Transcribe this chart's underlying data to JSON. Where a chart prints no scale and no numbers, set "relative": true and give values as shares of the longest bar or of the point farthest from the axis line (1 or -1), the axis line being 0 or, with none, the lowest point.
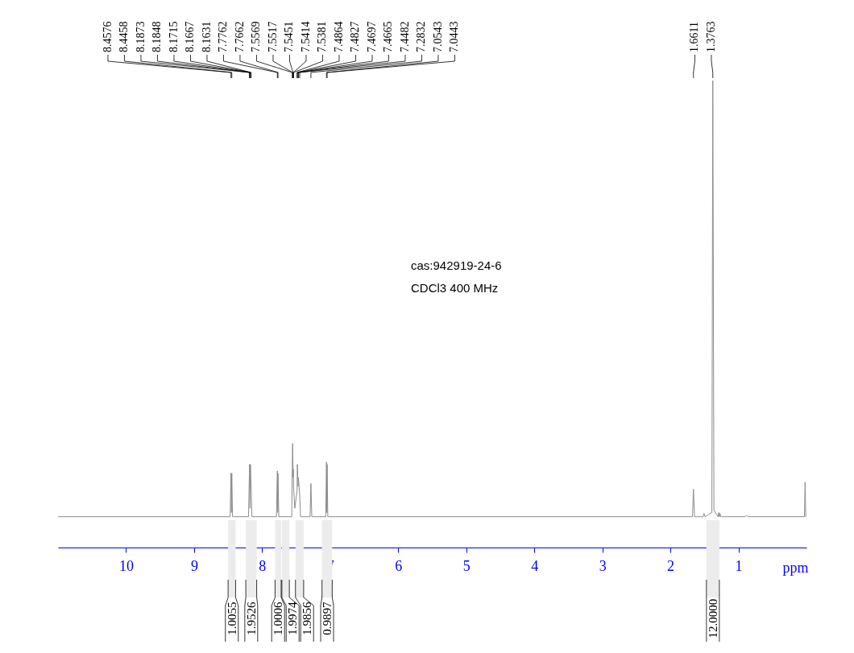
{
  "chart_data": {
    "type": "line",
    "relative": true,
    "xlabel": "ppm",
    "xlim": [
      11,
      0
    ],
    "xticks": [
      1,
      2,
      3,
      4,
      5,
      6,
      7,
      8,
      9,
      10
    ],
    "series": [
      {
        "color": "#8c8c8c",
        "x": [
          11,
          8.47,
          8.4576,
          8.452,
          8.4458,
          8.435,
          8.2,
          8.1873,
          8.1848,
          8.178,
          8.1715,
          8.1667,
          8.1631,
          8.15,
          7.79,
          7.7762,
          7.771,
          7.7662,
          7.755,
          7.565,
          7.5569,
          7.5517,
          7.5451,
          7.5414,
          7.5381,
          7.52,
          7.4864,
          7.4827,
          7.4697,
          7.4665,
          7.4482,
          7.435,
          7.295,
          7.2832,
          7.27,
          7.065,
          7.0543,
          7.049,
          7.0443,
          7.035,
          1.675,
          1.6611,
          1.645,
          1.52,
          1.505,
          1.49,
          1.39,
          1.3763,
          1.36,
          1.3,
          1.29,
          1.28,
          1.27,
          1.26,
          1.25,
          0.9,
          0.88,
          0.86,
          0.03,
          0.02,
          0.01,
          0
        ],
        "values": [
          0.066,
          0.066,
          0.159,
          0.075,
          0.159,
          0.066,
          0.066,
          0.159,
          0.178,
          0.084,
          0.178,
          0.15,
          0.14,
          0.066,
          0.066,
          0.164,
          0.075,
          0.159,
          0.066,
          0.066,
          0.168,
          0.223,
          0.15,
          0.168,
          0.131,
          0.084,
          0.122,
          0.178,
          0.131,
          0.15,
          0.112,
          0.066,
          0.066,
          0.137,
          0.066,
          0.066,
          0.183,
          0.075,
          0.178,
          0.066,
          0.066,
          0.125,
          0.066,
          0.066,
          0.073,
          0.066,
          0.075,
          1,
          0.08,
          0.066,
          0.075,
          0.066,
          0.073,
          0.066,
          0.066,
          0.066,
          0.069,
          0.066,
          0.066,
          0.14,
          0.066,
          0.066
        ]
      }
    ],
    "bands": [
      {
        "axis": "x",
        "from": 8.5,
        "to": 8.39,
        "label": "1.0055"
      },
      {
        "axis": "x",
        "from": 8.24,
        "to": 8.08,
        "label": "1.9526"
      },
      {
        "axis": "x",
        "from": 7.81,
        "to": 7.72,
        "label": "1.0006"
      },
      {
        "axis": "x",
        "from": 7.71,
        "to": 7.6,
        "label": "1.9974"
      },
      {
        "axis": "x",
        "from": 7.51,
        "to": 7.39,
        "label": "1.9856"
      },
      {
        "axis": "x",
        "from": 7.12,
        "to": 6.97,
        "label": "0.9897"
      },
      {
        "axis": "x",
        "from": 1.47,
        "to": 1.28,
        "label": "12.0000"
      }
    ],
    "annotations": [
      {
        "text": "8.4576",
        "x": 8.4576
      },
      {
        "text": "8.4458",
        "x": 8.4458
      },
      {
        "text": "8.1873",
        "x": 8.1873
      },
      {
        "text": "8.1848",
        "x": 8.1848
      },
      {
        "text": "8.1715",
        "x": 8.1715
      },
      {
        "text": "8.1667",
        "x": 8.1667
      },
      {
        "text": "8.1631",
        "x": 8.1631
      },
      {
        "text": "7.7762",
        "x": 7.7762
      },
      {
        "text": "7.7662",
        "x": 7.7662
      },
      {
        "text": "7.5569",
        "x": 7.5569
      },
      {
        "text": "7.5517",
        "x": 7.5517
      },
      {
        "text": "7.5451",
        "x": 7.5451
      },
      {
        "text": "7.5414",
        "x": 7.5414
      },
      {
        "text": "7.5381",
        "x": 7.5381
      },
      {
        "text": "7.4864",
        "x": 7.4864
      },
      {
        "text": "7.4827",
        "x": 7.4827
      },
      {
        "text": "7.4697",
        "x": 7.4697
      },
      {
        "text": "7.4665",
        "x": 7.4665
      },
      {
        "text": "7.4482",
        "x": 7.4482
      },
      {
        "text": "7.2832",
        "x": 7.2832
      },
      {
        "text": "7.0543",
        "x": 7.0543
      },
      {
        "text": "7.0443",
        "x": 7.0443
      },
      {
        "text": "1.6611",
        "x": 1.6611
      },
      {
        "text": "1.3763",
        "x": 1.3763
      },
      "cas:942919-24-6",
      "CDCl3   400 MHz"
    ]
  }
}
